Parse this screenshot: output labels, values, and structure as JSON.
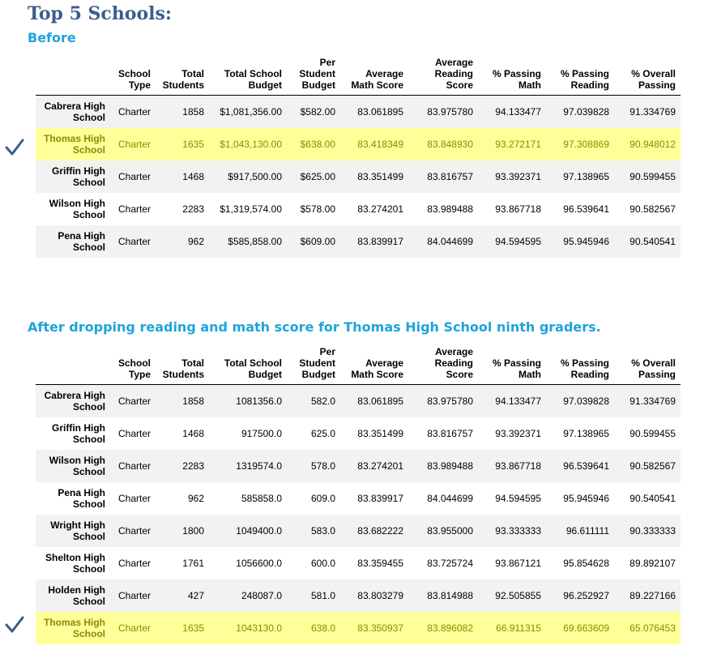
{
  "title": "Top 5 Schools:",
  "before": {
    "label": "Before",
    "columns": [
      "School Type",
      "Total Students",
      "Total School Budget",
      "Per Student Budget",
      "Average Math Score",
      "Average Reading Score",
      "% Passing Math",
      "% Passing Reading",
      "% Overall Passing"
    ],
    "rows": [
      {
        "name": "Cabrera High School",
        "cells": [
          "Charter",
          "1858",
          "$1,081,356.00",
          "$582.00",
          "83.061895",
          "83.975780",
          "94.133477",
          "97.039828",
          "91.334769"
        ],
        "highlight": false
      },
      {
        "name": "Thomas High School",
        "cells": [
          "Charter",
          "1635",
          "$1,043,130.00",
          "$638.00",
          "83.418349",
          "83.848930",
          "93.272171",
          "97.308869",
          "90.948012"
        ],
        "highlight": true
      },
      {
        "name": "Griffin High School",
        "cells": [
          "Charter",
          "1468",
          "$917,500.00",
          "$625.00",
          "83.351499",
          "83.816757",
          "93.392371",
          "97.138965",
          "90.599455"
        ],
        "highlight": false
      },
      {
        "name": "Wilson High School",
        "cells": [
          "Charter",
          "2283",
          "$1,319,574.00",
          "$578.00",
          "83.274201",
          "83.989488",
          "93.867718",
          "96.539641",
          "90.582567"
        ],
        "highlight": false
      },
      {
        "name": "Pena High School",
        "cells": [
          "Charter",
          "962",
          "$585,858.00",
          "$609.00",
          "83.839917",
          "84.044699",
          "94.594595",
          "95.945946",
          "90.540541"
        ],
        "highlight": false
      }
    ]
  },
  "after": {
    "label": "After dropping reading and math score for Thomas High School ninth graders.",
    "columns": [
      "School Type",
      "Total Students",
      "Total School Budget",
      "Per Student Budget",
      "Average Math Score",
      "Average Reading Score",
      "% Passing Math",
      "% Passing Reading",
      "% Overall Passing"
    ],
    "rows": [
      {
        "name": "Cabrera High School",
        "cells": [
          "Charter",
          "1858",
          "1081356.0",
          "582.0",
          "83.061895",
          "83.975780",
          "94.133477",
          "97.039828",
          "91.334769"
        ],
        "highlight": false
      },
      {
        "name": "Griffin High School",
        "cells": [
          "Charter",
          "1468",
          "917500.0",
          "625.0",
          "83.351499",
          "83.816757",
          "93.392371",
          "97.138965",
          "90.599455"
        ],
        "highlight": false
      },
      {
        "name": "Wilson High School",
        "cells": [
          "Charter",
          "2283",
          "1319574.0",
          "578.0",
          "83.274201",
          "83.989488",
          "93.867718",
          "96.539641",
          "90.582567"
        ],
        "highlight": false
      },
      {
        "name": "Pena High School",
        "cells": [
          "Charter",
          "962",
          "585858.0",
          "609.0",
          "83.839917",
          "84.044699",
          "94.594595",
          "95.945946",
          "90.540541"
        ],
        "highlight": false
      },
      {
        "name": "Wright High School",
        "cells": [
          "Charter",
          "1800",
          "1049400.0",
          "583.0",
          "83.682222",
          "83.955000",
          "93.333333",
          "96.611111",
          "90.333333"
        ],
        "highlight": false
      },
      {
        "name": "Shelton High School",
        "cells": [
          "Charter",
          "1761",
          "1056600.0",
          "600.0",
          "83.359455",
          "83.725724",
          "93.867121",
          "95.854628",
          "89.892107"
        ],
        "highlight": false
      },
      {
        "name": "Holden High School",
        "cells": [
          "Charter",
          "427",
          "248087.0",
          "581.0",
          "83.803279",
          "83.814988",
          "92.505855",
          "96.252927",
          "89.227166"
        ],
        "highlight": false
      },
      {
        "name": "Thomas High School",
        "cells": [
          "Charter",
          "1635",
          "1043130.0",
          "638.0",
          "83.350937",
          "83.896082",
          "66.911315",
          "69.663609",
          "65.076453"
        ],
        "highlight": true
      }
    ]
  },
  "colors": {
    "title": "#3b5d8d",
    "subtitle": "#1fa3dc",
    "highlight": "#ffff99",
    "check": "#3b5d8d"
  },
  "icons": {
    "marker": "checkmark-icon"
  }
}
